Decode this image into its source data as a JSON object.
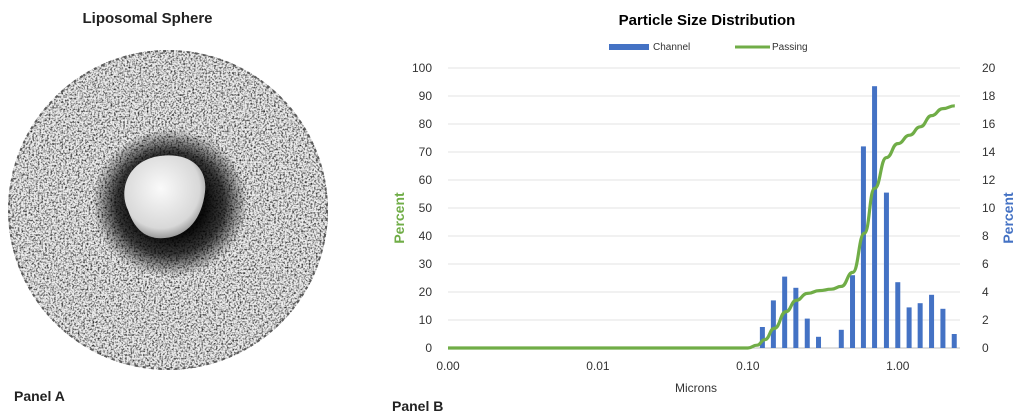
{
  "panel_a": {
    "title": "Liposomal Sphere",
    "label": "Panel A"
  },
  "panel_b": {
    "label": "Panel B"
  },
  "colors": {
    "channel": "#4472C4",
    "passing": "#70AD47",
    "micrograph_dark": "#111111"
  },
  "chart_data": {
    "type": "bar",
    "title": "Particle Size Distribution",
    "xlabel": "Microns",
    "ylabel_left": "Percent",
    "ylabel_right": "Percent",
    "x_scale": "log",
    "xlim": [
      0.001,
      2.6
    ],
    "x_ticks": [
      0.001,
      0.01,
      0.1,
      1
    ],
    "x_tick_labels": [
      "0.00",
      "0.01",
      "0.10",
      "1.00"
    ],
    "y_left_lim": [
      0,
      100
    ],
    "y_left_ticks": [
      0,
      10,
      20,
      30,
      40,
      50,
      60,
      70,
      80,
      90,
      100
    ],
    "y_right_lim": [
      0,
      20
    ],
    "y_right_ticks": [
      0,
      2,
      4,
      6,
      8,
      10,
      12,
      14,
      16,
      18,
      20
    ],
    "legend": {
      "position": "top",
      "entries": [
        "Channel",
        "Passing"
      ]
    },
    "grid": true,
    "series": [
      {
        "name": "Channel",
        "kind": "bar",
        "axis": "right",
        "x": [
          0.125,
          0.148,
          0.176,
          0.209,
          0.249,
          0.296,
          0.42,
          0.499,
          0.59,
          0.7,
          0.84,
          1.0,
          1.19,
          1.41,
          1.68,
          2.0,
          2.38
        ],
        "values": [
          1.5,
          3.4,
          5.1,
          4.3,
          2.1,
          0.8,
          1.3,
          5.2,
          14.4,
          18.7,
          11.1,
          4.7,
          2.9,
          3.2,
          3.8,
          2.8,
          1.0
        ]
      },
      {
        "name": "Passing",
        "kind": "line",
        "axis": "left",
        "x": [
          0.001,
          0.02,
          0.1,
          0.115,
          0.13,
          0.15,
          0.18,
          0.21,
          0.25,
          0.3,
          0.36,
          0.42,
          0.5,
          0.6,
          0.7,
          0.84,
          1.0,
          1.2,
          1.41,
          1.68,
          2.0,
          2.4
        ],
        "values": [
          0,
          0,
          0,
          1,
          3,
          7,
          13,
          17,
          19.5,
          20.5,
          21,
          22,
          27,
          41,
          57,
          68,
          73,
          76,
          79,
          83,
          85.5,
          86.5
        ]
      }
    ]
  }
}
